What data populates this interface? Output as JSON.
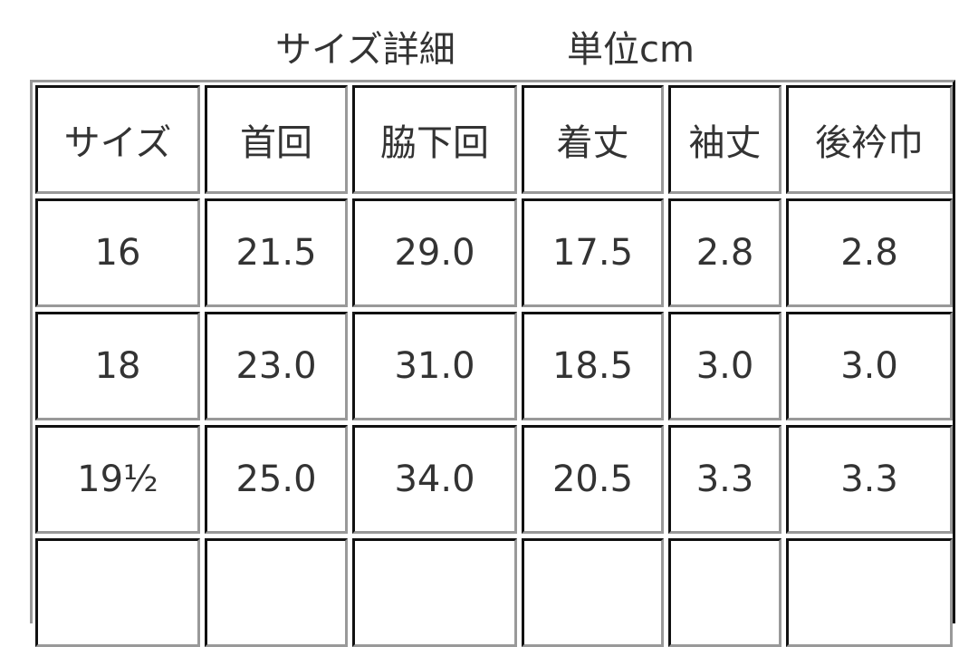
{
  "title": "サイズ詳細",
  "unit": "単位cm",
  "table": {
    "headers": [
      "サイズ",
      "首回",
      "脇下回",
      "着丈",
      "袖丈",
      "後衿巾"
    ],
    "rows": [
      [
        "16",
        "21.5",
        "29.0",
        "17.5",
        "2.8",
        "2.8"
      ],
      [
        "18",
        "23.0",
        "31.0",
        "18.5",
        "3.0",
        "3.0"
      ],
      [
        "19½",
        "25.0",
        "34.0",
        "20.5",
        "3.3",
        "3.3"
      ],
      [
        "",
        "",
        "",
        "",
        "",
        ""
      ]
    ]
  }
}
